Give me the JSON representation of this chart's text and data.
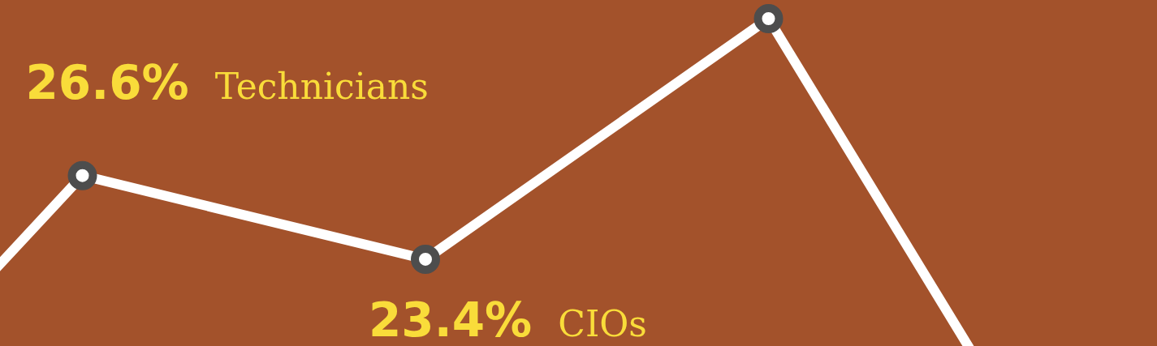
{
  "chart_data": {
    "type": "line",
    "categories": [
      null,
      null,
      null,
      null,
      null
    ],
    "series": [
      {
        "color": "#ffffff",
        "values": [
          12.5,
          26.6,
          23.4,
          32.6,
          11.1
        ],
        "value_labels": [
          null,
          "26.6%",
          "23.4%",
          null,
          null
        ]
      }
    ],
    "annotations": [
      "Technicians",
      "CIOs"
    ],
    "marker": "circle",
    "legend": false,
    "tick_labels": false
  }
}
